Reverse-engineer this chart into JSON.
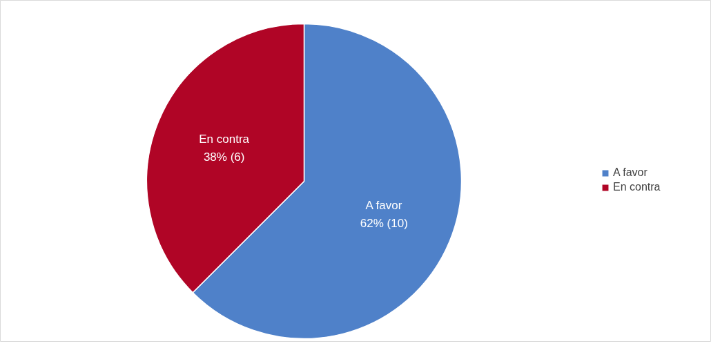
{
  "chart_data": {
    "type": "pie",
    "categories": [
      "A favor",
      "En contra"
    ],
    "values": [
      10,
      6
    ],
    "colors": [
      "#4f81c9",
      "#b00526"
    ],
    "value_labels": [
      "62% (10)",
      "38% (6)"
    ],
    "legend": "right"
  }
}
